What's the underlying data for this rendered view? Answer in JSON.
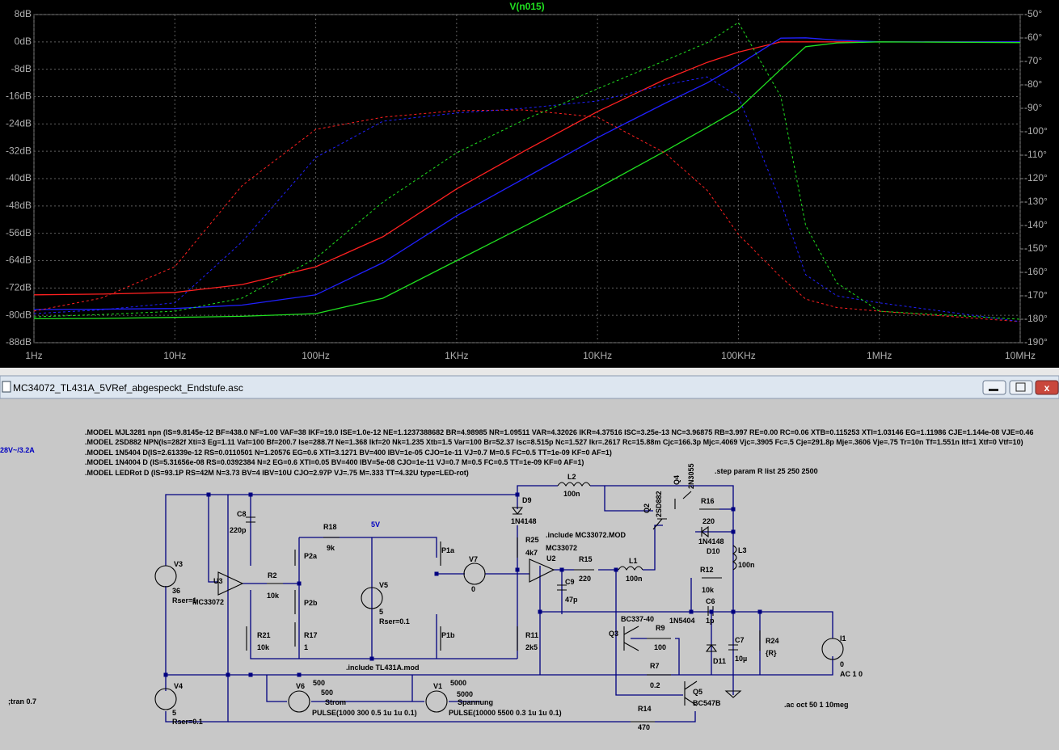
{
  "chart_data": {
    "type": "line",
    "title": "V(n015)",
    "log_x": true,
    "grid": true,
    "x": [
      1,
      3,
      10,
      30,
      100,
      300,
      1000,
      3000,
      10000,
      30000,
      60000,
      100000,
      200000,
      300000,
      500000,
      1000000,
      10000000
    ],
    "xlim": [
      1,
      10000000
    ],
    "xticks": [
      {
        "value": 1,
        "label": "1Hz"
      },
      {
        "value": 10,
        "label": "10Hz"
      },
      {
        "value": 100,
        "label": "100Hz"
      },
      {
        "value": 1000,
        "label": "1KHz"
      },
      {
        "value": 10000,
        "label": "10KHz"
      },
      {
        "value": 100000,
        "label": "100KHz"
      },
      {
        "value": 1000000,
        "label": "1MHz"
      },
      {
        "value": 10000000,
        "label": "10MHz"
      }
    ],
    "ylim": [
      -88,
      8
    ],
    "yticks": [
      {
        "value": 8,
        "label": "8dB"
      },
      {
        "value": 0,
        "label": "0dB"
      },
      {
        "value": -8,
        "label": "-8dB"
      },
      {
        "value": -16,
        "label": "-16dB"
      },
      {
        "value": -24,
        "label": "-24dB"
      },
      {
        "value": -32,
        "label": "-32dB"
      },
      {
        "value": -40,
        "label": "-40dB"
      },
      {
        "value": -48,
        "label": "-48dB"
      },
      {
        "value": -56,
        "label": "-56dB"
      },
      {
        "value": -64,
        "label": "-64dB"
      },
      {
        "value": -72,
        "label": "-72dB"
      },
      {
        "value": -80,
        "label": "-80dB"
      },
      {
        "value": -88,
        "label": "-88dB"
      }
    ],
    "y2lim": [
      -190,
      -50
    ],
    "y2ticks": [
      {
        "value": -50,
        "label": "-50°"
      },
      {
        "value": -60,
        "label": "-60°"
      },
      {
        "value": -70,
        "label": "-70°"
      },
      {
        "value": -80,
        "label": "-80°"
      },
      {
        "value": -90,
        "label": "-90°"
      },
      {
        "value": -100,
        "label": "-100°"
      },
      {
        "value": -110,
        "label": "-110°"
      },
      {
        "value": -120,
        "label": "-120°"
      },
      {
        "value": -130,
        "label": "-130°"
      },
      {
        "value": -140,
        "label": "-140°"
      },
      {
        "value": -150,
        "label": "-150°"
      },
      {
        "value": -160,
        "label": "-160°"
      },
      {
        "value": -170,
        "label": "-170°"
      },
      {
        "value": -180,
        "label": "-180°"
      },
      {
        "value": -190,
        "label": "-190°"
      }
    ],
    "series": [
      {
        "color": "#ff2020",
        "dash": false,
        "values": [
          -74,
          -73.8,
          -73.3,
          -71,
          -65.8,
          -57,
          -43,
          -32,
          -20.4,
          -11,
          -6,
          -3,
          0,
          0,
          0,
          0,
          0
        ]
      },
      {
        "color": "#2020ff",
        "dash": false,
        "values": [
          -78.3,
          -78.2,
          -78,
          -77,
          -74,
          -64.6,
          -50.9,
          -40,
          -28,
          -18,
          -12,
          -6.7,
          1.1,
          1.2,
          0.5,
          0,
          0
        ]
      },
      {
        "color": "#20e020",
        "dash": false,
        "values": [
          -81,
          -80.9,
          -80.6,
          -80.3,
          -79.5,
          -75,
          -64,
          -54,
          -42.8,
          -32,
          -25,
          -19.7,
          -8,
          -1.4,
          -0.3,
          0,
          -0.2
        ]
      },
      {
        "color": "#ff2020",
        "dash": true,
        "axis": "y2",
        "values": [
          -176.5,
          -171,
          -157.6,
          -123,
          -99,
          -93.8,
          -91,
          -90.7,
          -93.8,
          -109,
          -125,
          -143.8,
          -162,
          -171.4,
          -175,
          -176.6,
          -181
        ]
      },
      {
        "color": "#2020ff",
        "dash": true,
        "axis": "y2",
        "values": [
          -177.6,
          -176,
          -173,
          -147,
          -111,
          -95.5,
          -92,
          -90,
          -86.9,
          -80,
          -76.6,
          -85,
          -130,
          -161,
          -170,
          -173,
          -181
        ]
      },
      {
        "color": "#20e020",
        "dash": true,
        "axis": "y2",
        "values": [
          -179,
          -178,
          -176.6,
          -171,
          -154,
          -130,
          -109,
          -95,
          -81.7,
          -69.7,
          -62,
          -53.4,
          -85,
          -140,
          -164.5,
          -176.6,
          -180
        ]
      }
    ]
  },
  "window": {
    "title": "MC34072_TL431A_5VRef_abgespeckt_Endstufe.asc"
  },
  "schematic": {
    "labels": [
      ".MODEL MJL3281 npn (IS=9.8145e-12 BF=438.0 NF=1.00 VAF=38 IKF=19.0 ISE=1.0e-12 NE=1.1237388682 BR=4.98985 NR=1.09511 VAR=4.32026 IKR=4.37516 ISC=3.25e-13 NC=3.96875 RB=3.997 RE=0.00 RC=0.06 XTB=0.115253 XTI=1.03146 EG=1.11986 CJE=1.144e-08 VJE=0.46",
      ".MODEL 2SD882 NPN(Is=282f Xti=3 Eg=1.11 Vaf=100 Bf=200.7 Ise=288.7f Ne=1.368 Ikf=20 Nk=1.235 Xtb=1.5 Var=100 Br=52.37 Isc=8.515p Nc=1.527 Ikr=.2617 Rc=15.88m Cjc=166.3p Mjc=.4069 Vjc=.3905 Fc=.5 Cje=291.8p Mje=.3606 Vje=.75 Tr=10n Tf=1.551n Itf=1 Xtf=0 Vtf=10)",
      ".MODEL 1N5404 D(IS=2.61339e-12 RS=0.0110501 N=1.20576 EG=0.6 XTI=3.1271 BV=400 IBV=1e-05 CJO=1e-11 VJ=0.7 M=0.5 FC=0.5 TT=1e-09 KF=0 AF=1)",
      ".MODEL 1N4004 D (IS=5.31656e-08 RS=0.0392384 N=2 EG=0.6 XTI=0.05 BV=400 IBV=5e-08 CJO=1e-11 VJ=0.7 M=0.5 FC=0.5 TT=1e-09 KF=0 AF=1)",
      ".MODEL LEDRot D (IS=93.1P RS=42M N=3.73 BV=4 IBV=10U CJO=2.97P VJ=.75 M=.333 TT=4.32U type=LED-rot)",
      "28V~/3.2A",
      ".step param R list 25 250 2500",
      "V3",
      "36",
      "Rser=1",
      "MC33072",
      "U3",
      "C8",
      "220p",
      "R2",
      "10k",
      "R18",
      "9k",
      "5V",
      "P2a",
      "P2b",
      "R17",
      "1",
      "R21",
      "10k",
      "V5",
      "5",
      "Rser=0.1",
      "P1a",
      "P1b",
      "V7",
      "0",
      "D9",
      "1N4148",
      "R25",
      "4k7",
      ".include MC33072.MOD",
      "MC33072",
      "U2",
      "R15",
      "220",
      "C9",
      "47p",
      "L1",
      "100n",
      "L2",
      "100n",
      "R11",
      "2k5",
      "Q2",
      "2SD882",
      "Q4",
      "2N3055",
      "R16",
      "220",
      "1N4148",
      "D10",
      "L3",
      "100n",
      "R12",
      "10k",
      "C6",
      "1p",
      "1N5404",
      "BC337-40",
      "R9",
      "100",
      "Q3",
      "D11",
      "C7",
      "10µ",
      "R24",
      "{R}",
      "I1",
      "0",
      "AC 1 0",
      "R7",
      "0.2",
      "Q5",
      "BC547B",
      ".ac oct 50 1 10meg",
      "R14",
      "470",
      ".include TL431A.mod",
      "V4",
      "5",
      "Rser=0.1",
      ";tran 0.7",
      "V6",
      "500",
      "500",
      "Strom",
      "PULSE(1000 300 0.5 1u 1u 0.1)",
      "V1",
      "5000",
      "5000",
      "Spannung",
      "PULSE(10000 5500 0.3 1u 1u 0.1)"
    ]
  }
}
